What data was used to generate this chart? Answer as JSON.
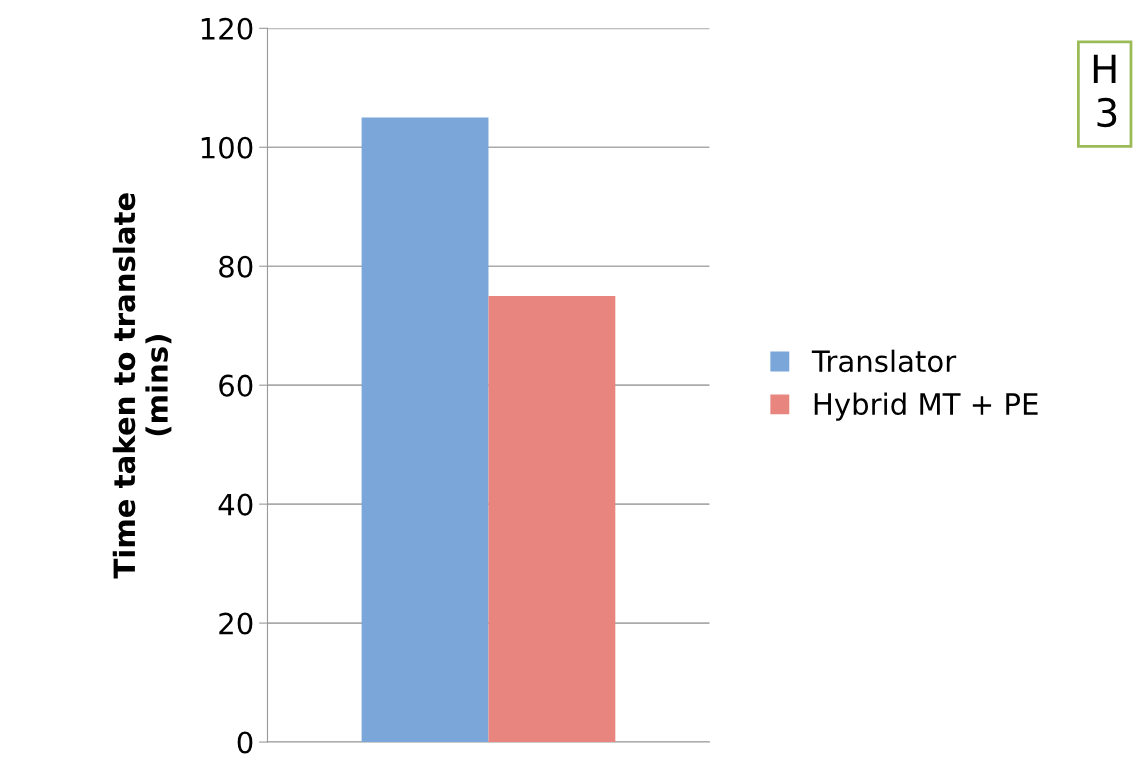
{
  "chart_data": {
    "type": "bar",
    "ylabel": "Time taken to translate\n(mins)",
    "categories": [
      null
    ],
    "series": [
      {
        "name": "Translator",
        "color": "#7aa6d9",
        "values": [
          105
        ]
      },
      {
        "name": "Hybrid MT + PE",
        "color": "#e8857e",
        "values": [
          75
        ]
      }
    ],
    "ylim": [
      0,
      120
    ],
    "yticks": [
      0,
      20,
      40,
      60,
      80,
      100,
      120
    ],
    "grid": "y",
    "legend": "right",
    "annotations": [
      "H\n3"
    ]
  }
}
